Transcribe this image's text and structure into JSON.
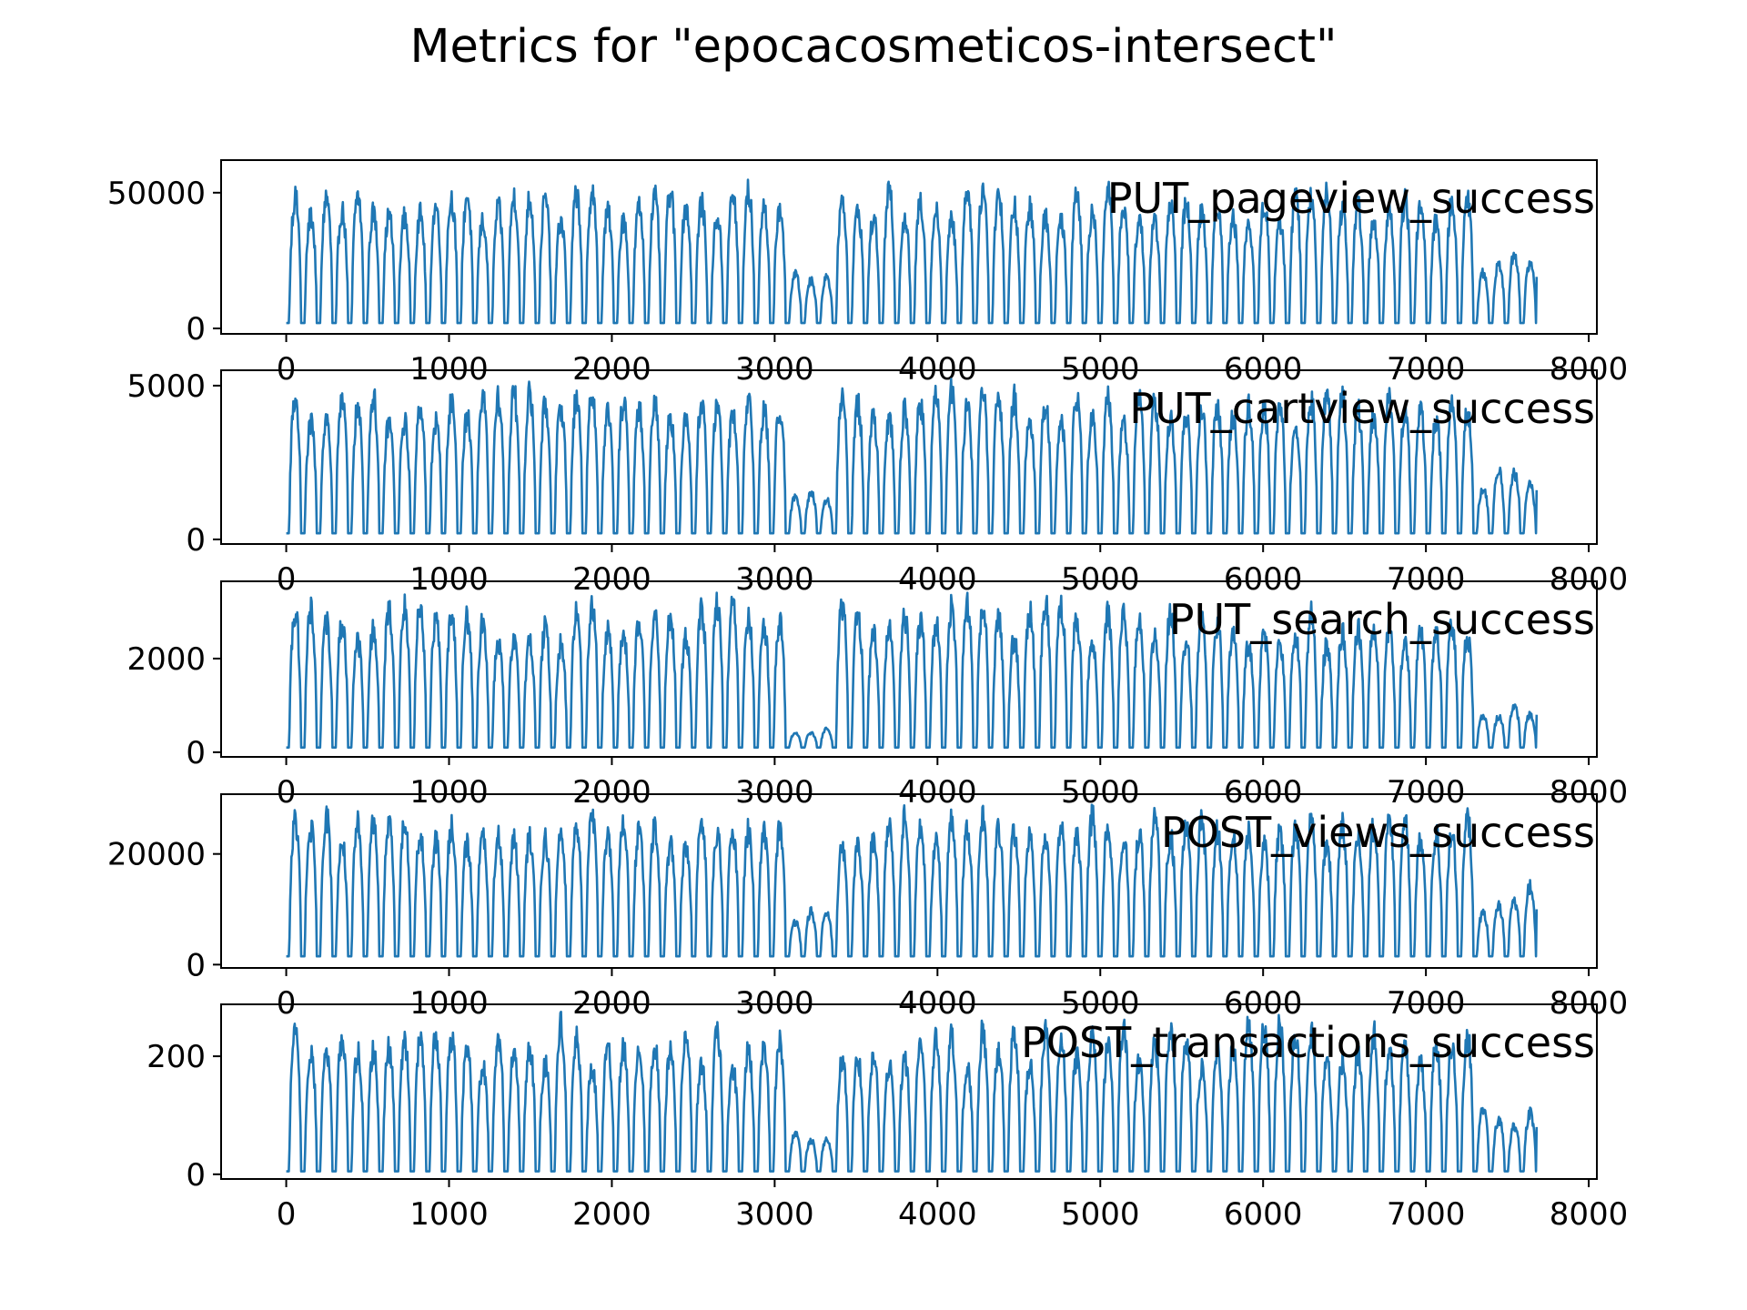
{
  "figure": {
    "title": "Metrics for \"epocacosmeticos-intersect\"",
    "line_color": "#1f77b4"
  },
  "chart_data": [
    {
      "type": "line",
      "title": "PUT_pageview_success",
      "x_ticks": [
        0,
        1000,
        2000,
        3000,
        4000,
        5000,
        6000,
        7000,
        8000
      ],
      "y_ticks": [
        0,
        50000
      ],
      "xlim": [
        -400,
        8050
      ],
      "ylim": [
        -2000,
        62000
      ],
      "grid": false,
      "x_range": [
        0,
        7680
      ],
      "samples_per_day": 96,
      "day_peak_range": [
        35000,
        57000
      ],
      "trough": 2000,
      "dip": {
        "start": 3100,
        "end": 3400,
        "peak": 22000
      },
      "end_value": 19000
    },
    {
      "type": "line",
      "title": "PUT_cartview_success",
      "x_ticks": [
        0,
        1000,
        2000,
        3000,
        4000,
        5000,
        6000,
        7000,
        8000
      ],
      "y_ticks": [
        0,
        5000
      ],
      "xlim": [
        -400,
        8050
      ],
      "ylim": [
        -150,
        5500
      ],
      "grid": false,
      "x_range": [
        0,
        7680
      ],
      "samples_per_day": 96,
      "day_peak_range": [
        3500,
        5300
      ],
      "trough": 200,
      "dip": {
        "start": 3100,
        "end": 3400,
        "peak": 1600
      },
      "end_value": 1600
    },
    {
      "type": "line",
      "title": "PUT_search_success",
      "x_ticks": [
        0,
        1000,
        2000,
        3000,
        4000,
        5000,
        6000,
        7000,
        8000
      ],
      "y_ticks": [
        0,
        2000
      ],
      "xlim": [
        -400,
        8050
      ],
      "ylim": [
        -100,
        3650
      ],
      "grid": false,
      "x_range": [
        0,
        7680
      ],
      "samples_per_day": 96,
      "day_peak_range": [
        2000,
        3500
      ],
      "trough": 100,
      "dip": {
        "start": 3100,
        "end": 3400,
        "peak": 500
      },
      "end_value": 800
    },
    {
      "type": "line",
      "title": "POST_views_success",
      "x_ticks": [
        0,
        1000,
        2000,
        3000,
        4000,
        5000,
        6000,
        7000,
        8000
      ],
      "y_ticks": [
        0,
        20000
      ],
      "xlim": [
        -400,
        8050
      ],
      "ylim": [
        -600,
        30800
      ],
      "grid": false,
      "x_range": [
        0,
        7680
      ],
      "samples_per_day": 96,
      "day_peak_range": [
        20000,
        29500
      ],
      "trough": 1500,
      "dip": {
        "start": 3100,
        "end": 3400,
        "peak": 10000
      },
      "end_value": 10000
    },
    {
      "type": "line",
      "title": "POST_transactions_success",
      "x_ticks": [
        0,
        1000,
        2000,
        3000,
        4000,
        5000,
        6000,
        7000,
        8000
      ],
      "y_ticks": [
        0,
        200
      ],
      "xlim": [
        -400,
        8050
      ],
      "ylim": [
        -8,
        288
      ],
      "grid": false,
      "x_range": [
        0,
        7680
      ],
      "samples_per_day": 96,
      "day_peak_range": [
        150,
        280
      ],
      "trough": 5,
      "dip": {
        "start": 3100,
        "end": 3400,
        "peak": 70
      },
      "end_value": 80
    }
  ]
}
